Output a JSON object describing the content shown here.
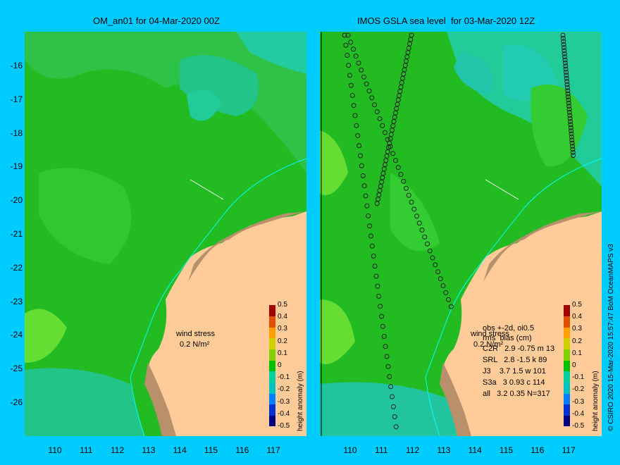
{
  "left_panel": {
    "title": "OM_an01 for 04-Mar-2020 00Z",
    "wind_label": "wind stress",
    "wind_scale": "0.2 N/m²"
  },
  "right_panel": {
    "title": "IMOS GSLA sea level  for 03-Mar-2020 12Z",
    "wind_label": "wind stress",
    "wind_scale": "0.2 N/m²",
    "stats_header": "obs +-2d, oi0.5",
    "stats_subheader": "rms  bias (cm)",
    "stats_rows": [
      "C2R   2.9 -0.75 m 13",
      "SRL   2.8 -1.5 k 89",
      "J3    3.7 1.5 w 101",
      "S3a   3 0.93 c 114",
      "all   3.2 0.35 N=317"
    ]
  },
  "axes": {
    "y_ticks": [
      "-16",
      "-17",
      "-18",
      "-19",
      "-20",
      "-21",
      "-22",
      "-23",
      "-24",
      "-25",
      "-26"
    ],
    "x_ticks": [
      "110",
      "111",
      "112",
      "113",
      "114",
      "115",
      "116",
      "117"
    ]
  },
  "colorbar": {
    "title": "height anomaly (m)",
    "ticks": [
      "0.5",
      "0.4",
      "0.3",
      "0.2",
      "0.1",
      "0",
      "-0.1",
      "-0.2",
      "-0.3",
      "-0.4",
      "-0.5"
    ],
    "colors": [
      "#000080",
      "#0030d0",
      "#0080ff",
      "#00c0c0",
      "#00d0a0",
      "#00c000",
      "#80d000",
      "#d0d000",
      "#ffa000",
      "#e05000",
      "#a00000"
    ]
  },
  "credit": "© CSIRO 2020   15-Mar-2020 15:57:47 BoM OceanMAPS v3",
  "colors": {
    "background": "#00ccff",
    "ocean": "#22bb22",
    "land": "#ffcc99",
    "coast": "#00ffff"
  }
}
